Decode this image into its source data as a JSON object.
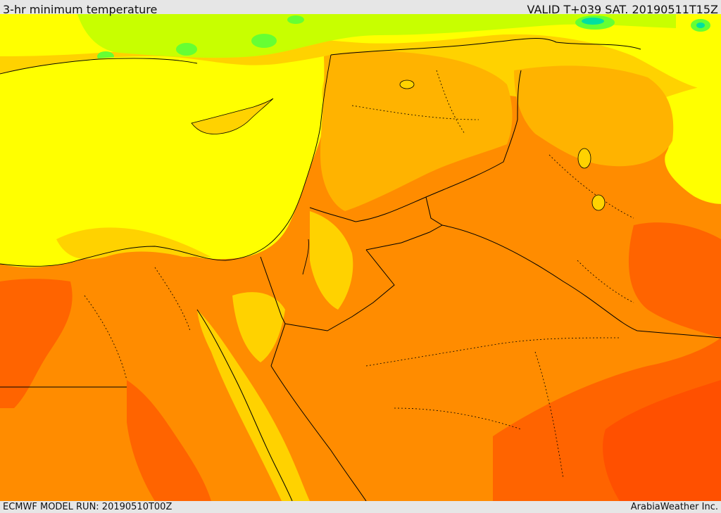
{
  "header": {
    "title": "3-hr minimum temperature",
    "valid": "VALID T+039 SAT. 20190511T15Z"
  },
  "footer": {
    "model_run": "ECMWF MODEL RUN: 20190510T00Z",
    "credit": "ArabiaWeather Inc."
  },
  "colors": {
    "bar": "#e6e6e6",
    "yellow": "#ffff00",
    "gold": "#ffd200",
    "amber": "#ffb300",
    "orange": "#ff8c00",
    "dark_orange": "#ff6400",
    "red_orange": "#ff5000",
    "light_green": "#c8ff00",
    "green": "#66ff33",
    "teal": "#00e0a0",
    "border": "#000000"
  }
}
